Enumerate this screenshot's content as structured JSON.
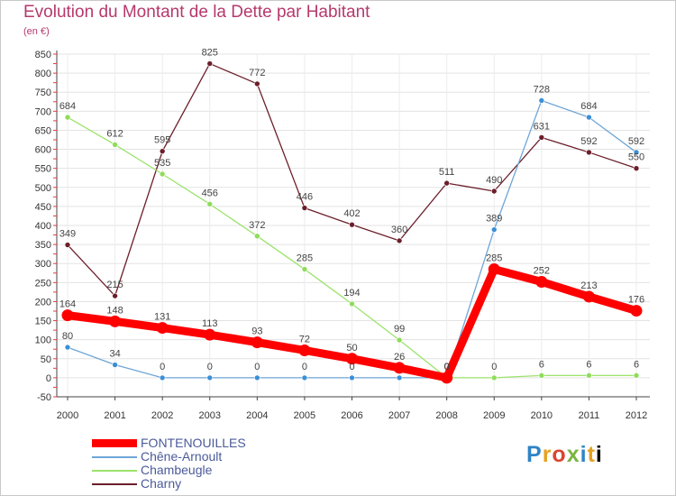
{
  "chart_data": {
    "type": "line",
    "title": "Evolution du Montant de la Dette par Habitant",
    "subtitle": "(en €)",
    "x": [
      "2000",
      "2001",
      "2002",
      "2003",
      "2004",
      "2005",
      "2006",
      "2007",
      "2008",
      "2009",
      "2010",
      "2011",
      "2012"
    ],
    "ylim": [
      -50,
      850
    ],
    "yticks": [
      -50,
      0,
      50,
      100,
      150,
      200,
      250,
      300,
      350,
      400,
      450,
      500,
      550,
      600,
      650,
      700,
      750,
      800,
      850
    ],
    "grid": true,
    "legend_position": "bottom-left",
    "series": [
      {
        "name": "FONTENOUILLES",
        "color": "#ff0000",
        "marker": "#ff0000",
        "width": 9,
        "values": [
          164,
          148,
          131,
          113,
          93,
          72,
          50,
          26,
          0,
          285,
          252,
          213,
          176
        ]
      },
      {
        "name": "Chêne-Arnoult",
        "color": "#6fa6d6",
        "marker": "#3b8fd6",
        "width": 1.3,
        "values": [
          80,
          34,
          0,
          0,
          0,
          0,
          0,
          0,
          0,
          389,
          728,
          684,
          592
        ]
      },
      {
        "name": "Chambeugle",
        "color": "#9be36a",
        "marker": "#8fdc5a",
        "width": 1.3,
        "values": [
          684,
          612,
          535,
          456,
          372,
          285,
          194,
          99,
          0,
          0,
          6,
          6,
          6
        ]
      },
      {
        "name": "Charny",
        "color": "#6b1e2a",
        "marker": "#6b1e2a",
        "width": 1.3,
        "values": [
          349,
          215,
          595,
          825,
          772,
          446,
          402,
          360,
          511,
          490,
          631,
          592,
          550
        ]
      }
    ],
    "data_labels": [
      {
        "series": 0,
        "labels": [
          "164",
          "148",
          "131",
          "113",
          "93",
          "72",
          "50",
          "26",
          "0",
          "285",
          "252",
          "213",
          "176"
        ]
      },
      {
        "series": 1,
        "labels": [
          "80",
          "34",
          "0",
          "0",
          "0",
          "0",
          "0",
          "",
          "0",
          "389",
          "728",
          "684",
          "592"
        ]
      },
      {
        "series": 2,
        "labels": [
          "684",
          "612",
          "535",
          "456",
          "372",
          "285",
          "194",
          "99",
          "0",
          "0",
          "6",
          "6",
          "6"
        ]
      },
      {
        "series": 3,
        "labels": [
          "349",
          "215",
          "595",
          "825",
          "772",
          "446",
          "402",
          "360",
          "511",
          "490",
          "631",
          "592",
          "550"
        ]
      }
    ]
  },
  "brand": {
    "logo_letters": [
      "P",
      "r",
      "o",
      "x",
      "i",
      "t",
      "i"
    ]
  }
}
